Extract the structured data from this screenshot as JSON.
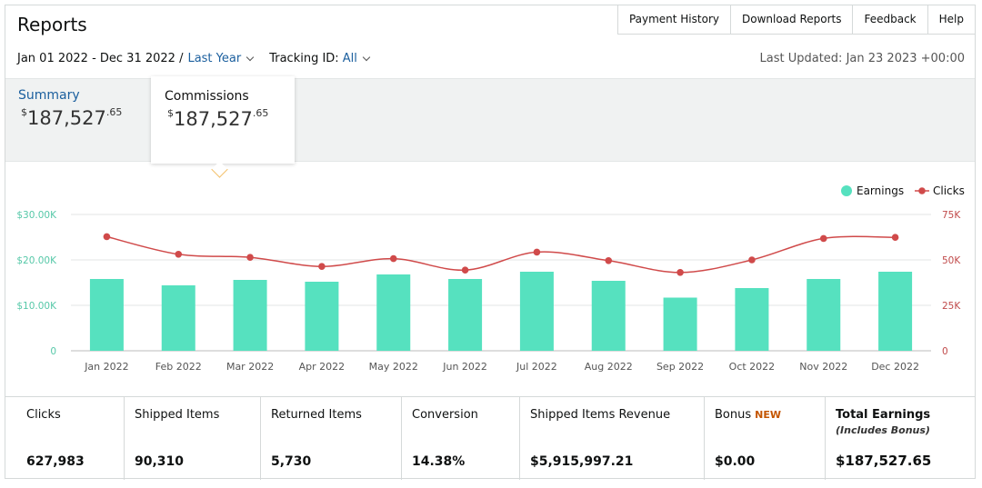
{
  "header": {
    "title": "Reports"
  },
  "nav": [
    "Payment History",
    "Download Reports",
    "Feedback",
    "Help"
  ],
  "filters": {
    "date_range": "Jan 01 2022 - Dec 31 2022 /",
    "period": "Last Year",
    "tracking_label": "Tracking ID:",
    "tracking_value": "All",
    "last_updated": "Last Updated: Jan 23 2023 +00:00"
  },
  "summary": {
    "summary_label": "Summary",
    "commissions_label": "Commissions",
    "currency": "$",
    "amount_main": "187,527",
    "amount_cents": ".65"
  },
  "chart_data": {
    "type": "bar",
    "categories": [
      "Jan 2022",
      "Feb 2022",
      "Mar 2022",
      "Apr 2022",
      "May 2022",
      "Jun 2022",
      "Jul 2022",
      "Aug 2022",
      "Sep 2022",
      "Oct 2022",
      "Nov 2022",
      "Dec 2022"
    ],
    "series": [
      {
        "name": "Earnings",
        "type": "bar",
        "axis": "left",
        "color": "#56e1bf",
        "values": [
          15800,
          14400,
          15600,
          15200,
          16800,
          15800,
          17400,
          15400,
          11700,
          13800,
          15800,
          17400
        ]
      },
      {
        "name": "Clicks",
        "type": "line",
        "axis": "right",
        "color": "#d04a4a",
        "values": [
          62800,
          53100,
          51400,
          46400,
          50700,
          44400,
          54300,
          49600,
          43100,
          50000,
          61800,
          62400
        ]
      }
    ],
    "left_axis": {
      "ticks": [
        "0",
        "$10.00K",
        "$20.00K",
        "$30.00K"
      ],
      "tick_values": [
        0,
        10000,
        20000,
        30000
      ],
      "range": [
        0,
        30000
      ],
      "color": "#56c8a8"
    },
    "right_axis": {
      "ticks": [
        "0",
        "25K",
        "50K",
        "75K"
      ],
      "tick_values": [
        0,
        25000,
        50000,
        75000
      ],
      "range": [
        0,
        75000
      ],
      "color": "#c04a4a"
    },
    "legend": [
      "Earnings",
      "Clicks"
    ],
    "legend_position": "top-right",
    "grid": true
  },
  "stats": [
    {
      "label": "Clicks",
      "value": "627,983"
    },
    {
      "label": "Shipped Items",
      "value": "90,310"
    },
    {
      "label": "Returned Items",
      "value": "5,730"
    },
    {
      "label": "Conversion",
      "value": "14.38%"
    },
    {
      "label": "Shipped Items Revenue",
      "value": "$5,915,997.21"
    },
    {
      "label": "Bonus",
      "badge": "NEW",
      "value": "$0.00"
    },
    {
      "label": "Total Earnings",
      "sub": "(Includes Bonus)",
      "value": "$187,527.65"
    }
  ]
}
